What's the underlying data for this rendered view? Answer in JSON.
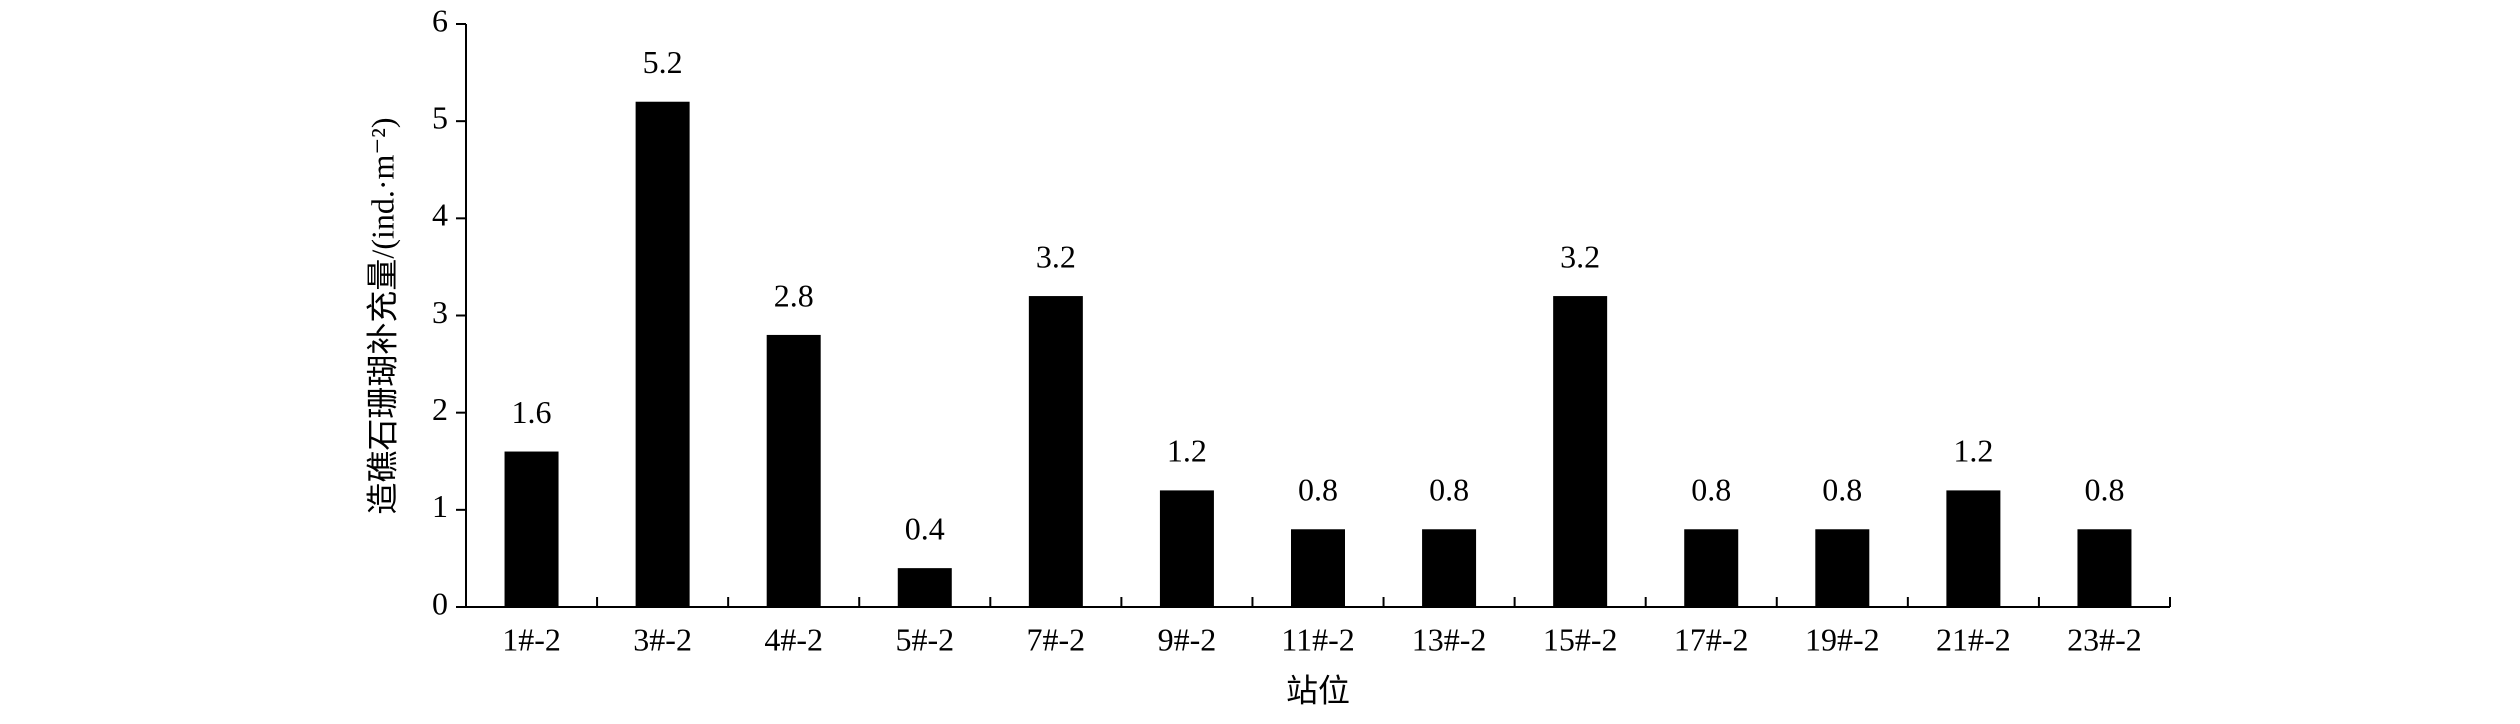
{
  "chart_data": {
    "type": "bar",
    "x_label": "站位",
    "y_label": "造礁石珊瑚补充量/(ind.·m⁻²)",
    "categories": [
      "1#-2",
      "3#-2",
      "4#-2",
      "5#-2",
      "7#-2",
      "9#-2",
      "11#-2",
      "13#-2",
      "15#-2",
      "17#-2",
      "19#-2",
      "21#-2",
      "23#-2"
    ],
    "values": [
      1.6,
      5.2,
      2.8,
      0.4,
      3.2,
      1.2,
      0.8,
      0.8,
      3.2,
      0.8,
      0.8,
      1.2,
      0.8
    ],
    "color": "#000000",
    "ylim": [
      0,
      6
    ],
    "yticks": [
      0,
      1,
      2,
      3,
      4,
      5,
      6
    ],
    "grid": false
  }
}
